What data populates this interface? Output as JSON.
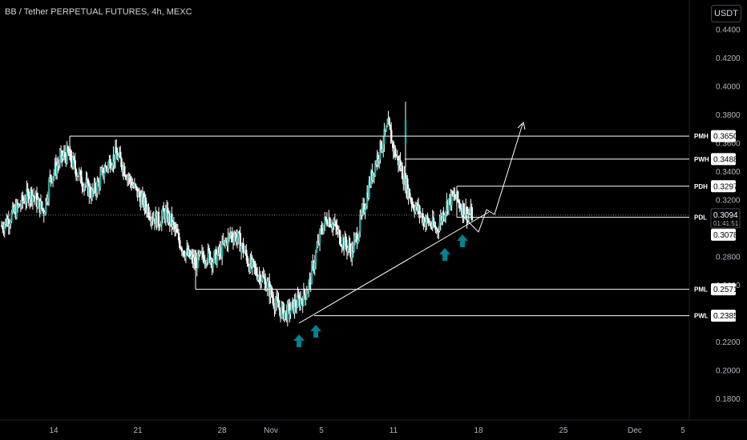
{
  "header": {
    "title": "BB / Tether PERPETUAL FUTURES, 4h, MEXC",
    "currency_button": "USDT"
  },
  "price_axis": {
    "labels": [
      "0.4400",
      "0.4200",
      "0.4000",
      "0.3800",
      "0.3600",
      "0.3400",
      "0.3200",
      "0.2800",
      "0.2600",
      "0.2200",
      "0.2000",
      "0.1800"
    ]
  },
  "time_axis": {
    "labels": [
      "14",
      "21",
      "28",
      "Nov",
      "5",
      "11",
      "18",
      "25",
      "Dec",
      "5"
    ]
  },
  "levels": [
    {
      "name": "PMH",
      "value": "0.3650",
      "price": 0.365
    },
    {
      "name": "PWH",
      "value": "0.3488",
      "price": 0.3488
    },
    {
      "name": "PDH",
      "value": "0.3297",
      "price": 0.3297
    },
    {
      "name": "PDL",
      "value": "0.3078",
      "price": 0.3078
    },
    {
      "name": "PML",
      "value": "0.2571",
      "price": 0.2571
    },
    {
      "name": "PWL",
      "value": "0.2385",
      "price": 0.2385
    }
  ],
  "current_price": {
    "value": "0.3094",
    "countdown": "01:41:51",
    "price": 0.3094
  },
  "colors": {
    "bull": "#26a69a",
    "bear": "#ef5350",
    "candle": "#26a69a",
    "arrow": "#00838f",
    "line": "#ffffff"
  },
  "markers": [
    "up-arrow-icon",
    "up-arrow-icon",
    "up-arrow-icon",
    "up-arrow-icon"
  ],
  "chart_data": {
    "type": "candlestick",
    "symbol": "BB / Tether PERPETUAL FUTURES",
    "interval": "4h",
    "exchange": "MEXC",
    "ylim": [
      0.17,
      0.45
    ],
    "x_ticks": [
      "14",
      "21",
      "28",
      "Nov",
      "5",
      "11",
      "18",
      "25",
      "Dec",
      "5"
    ],
    "close_path": [
      0.302,
      0.306,
      0.311,
      0.316,
      0.322,
      0.325,
      0.318,
      0.312,
      0.335,
      0.343,
      0.35,
      0.352,
      0.344,
      0.336,
      0.33,
      0.324,
      0.332,
      0.341,
      0.348,
      0.352,
      0.345,
      0.336,
      0.328,
      0.321,
      0.315,
      0.309,
      0.305,
      0.311,
      0.305,
      0.295,
      0.286,
      0.28,
      0.276,
      0.279,
      0.282,
      0.278,
      0.282,
      0.29,
      0.296,
      0.294,
      0.285,
      0.275,
      0.27,
      0.266,
      0.26,
      0.25,
      0.243,
      0.24,
      0.244,
      0.248,
      0.252,
      0.262,
      0.282,
      0.3,
      0.308,
      0.302,
      0.294,
      0.288,
      0.284,
      0.298,
      0.315,
      0.333,
      0.348,
      0.36,
      0.372,
      0.354,
      0.344,
      0.33,
      0.318,
      0.312,
      0.306,
      0.303,
      0.299,
      0.31,
      0.32,
      0.322,
      0.316,
      0.311,
      0.309
    ],
    "annotations": [
      "PMH 0.3650",
      "PWH 0.3488",
      "PDH 0.3297",
      "PDL 0.3078",
      "PML 0.2571",
      "PWL 0.2385"
    ]
  }
}
